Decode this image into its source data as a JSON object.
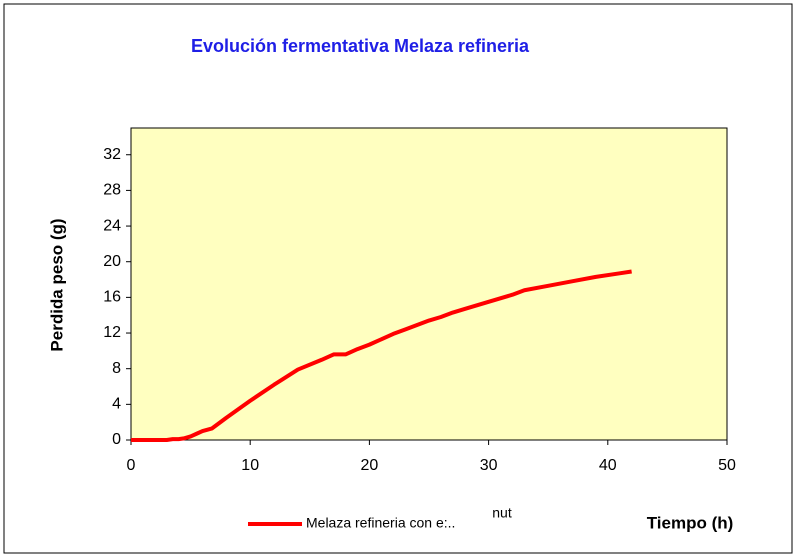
{
  "chart_data": {
    "type": "line",
    "title": "Evolución fermentativa Melaza refineria",
    "x_label": "Tiempo (h)",
    "y_label": "Perdida peso (g)",
    "annotation": "nut",
    "xlim": [
      0,
      50
    ],
    "xticks": [
      0,
      10,
      20,
      30,
      40,
      50
    ],
    "ylim": [
      0,
      35
    ],
    "yticks": [
      0,
      4,
      8,
      12,
      16,
      20,
      24,
      28,
      32
    ],
    "grid": false,
    "background": "#ffffc0",
    "legend": "bottom",
    "series": [
      {
        "name": "Melaza refineria con e:..",
        "color": "#ff0000",
        "x": [
          0,
          1,
          2,
          3,
          3.5,
          4,
          4.5,
          5,
          5.5,
          6,
          6.8,
          8,
          10,
          12,
          14,
          16,
          17,
          18,
          19,
          20,
          21,
          22,
          23,
          24,
          25,
          26,
          27,
          28,
          30,
          32,
          33,
          35,
          37,
          39,
          41,
          42
        ],
        "values": [
          0,
          0,
          0,
          0,
          0.1,
          0.1,
          0.2,
          0.4,
          0.7,
          1,
          1.3,
          2.5,
          4.4,
          6.2,
          7.9,
          9,
          9.6,
          9.6,
          10.2,
          10.7,
          11.3,
          11.9,
          12.4,
          12.9,
          13.4,
          13.8,
          14.3,
          14.7,
          15.5,
          16.3,
          16.8,
          17.3,
          17.8,
          18.3,
          18.7,
          18.9
        ]
      }
    ]
  }
}
